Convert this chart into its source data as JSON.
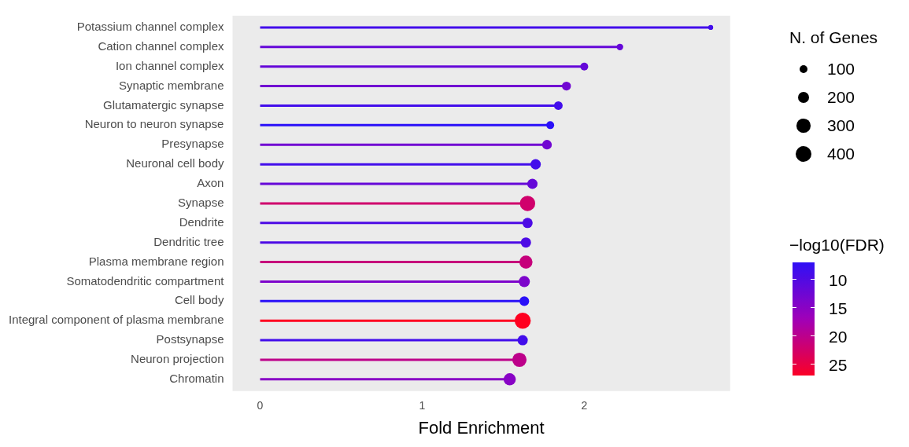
{
  "chart_data": {
    "type": "lollipop",
    "orientation": "horizontal",
    "xlabel": "Fold Enrichment",
    "legend_title": "N. of Genes",
    "clabel": "−log10(FDR)",
    "grid": false,
    "categories": [
      "Potassium channel complex",
      "Cation channel complex",
      "Ion channel complex",
      "Synaptic membrane",
      "Glutamatergic synapse",
      "Neuron to neuron synapse",
      "Presynapse",
      "Neuronal cell body",
      "Axon",
      "Synapse",
      "Dendrite",
      "Dendritic tree",
      "Plasma membrane region",
      "Somatodendritic compartment",
      "Cell body",
      "Integral component of plasma membrane",
      "Postsynapse",
      "Neuron projection",
      "Chromatin"
    ],
    "values": [
      2.78,
      2.22,
      2.0,
      1.89,
      1.84,
      1.79,
      1.77,
      1.7,
      1.68,
      1.65,
      1.65,
      1.64,
      1.64,
      1.63,
      1.63,
      1.62,
      1.62,
      1.6,
      1.54
    ],
    "sizes": [
      40,
      70,
      100,
      130,
      120,
      100,
      150,
      170,
      170,
      380,
      170,
      170,
      280,
      200,
      150,
      420,
      170,
      330,
      240
    ],
    "size_legend": [
      100,
      200,
      300,
      400
    ],
    "cvalues": [
      9,
      12,
      12,
      13,
      9,
      7,
      13,
      9,
      12,
      22,
      10,
      10,
      21,
      14,
      7,
      27,
      9,
      20,
      15
    ],
    "clim": [
      7,
      27
    ],
    "cticks": [
      10,
      15,
      20,
      25
    ],
    "xlim": [
      -0.17,
      2.9
    ],
    "xticks": [
      0,
      1,
      2
    ]
  }
}
